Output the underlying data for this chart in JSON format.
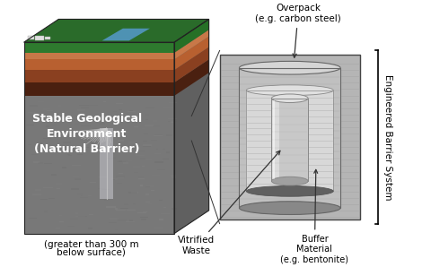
{
  "bg_color": "#ffffff",
  "left_block": {
    "geo_text_line1": "Stable Geological",
    "geo_text_line2": "Environment",
    "geo_text_line3": "(Natural Barrier)",
    "depth_text_line1": "(greater than 300 m",
    "depth_text_line2": "below surface)"
  },
  "right_block": {
    "overpack_text1": "Overpack",
    "overpack_text2": "(e.g. carbon steel)",
    "vitrified_text1": "Vitrified",
    "vitrified_text2": "Waste",
    "buffer_text1": "Buffer",
    "buffer_text2": "Material",
    "buffer_text3": "(e.g. bentonite)",
    "engineered_text": "Engineered Barrier System"
  },
  "colors": {
    "green_grass": "#2e7a2e",
    "green_top": "#2a6b2a",
    "brown_dark": "#6b3010",
    "brown_mid": "#a05030",
    "brown_light": "#c87848",
    "rock_dark": "#585858",
    "rock_mid": "#787878",
    "rock_light": "#909090",
    "rock_lighter": "#aaaaaa",
    "white": "#ffffff",
    "black": "#000000",
    "river_blue": "#5599cc",
    "overpack_light": "#c8c8c8",
    "overpack_mid": "#a8a8a8",
    "overpack_dark": "#888888",
    "canister_light": "#d8d8d8",
    "canister_mid": "#b8b8b8",
    "bentonite_bg": "#b0b0b0",
    "bentonite_stripe": "#909090",
    "shadow_dark": "#404040"
  }
}
